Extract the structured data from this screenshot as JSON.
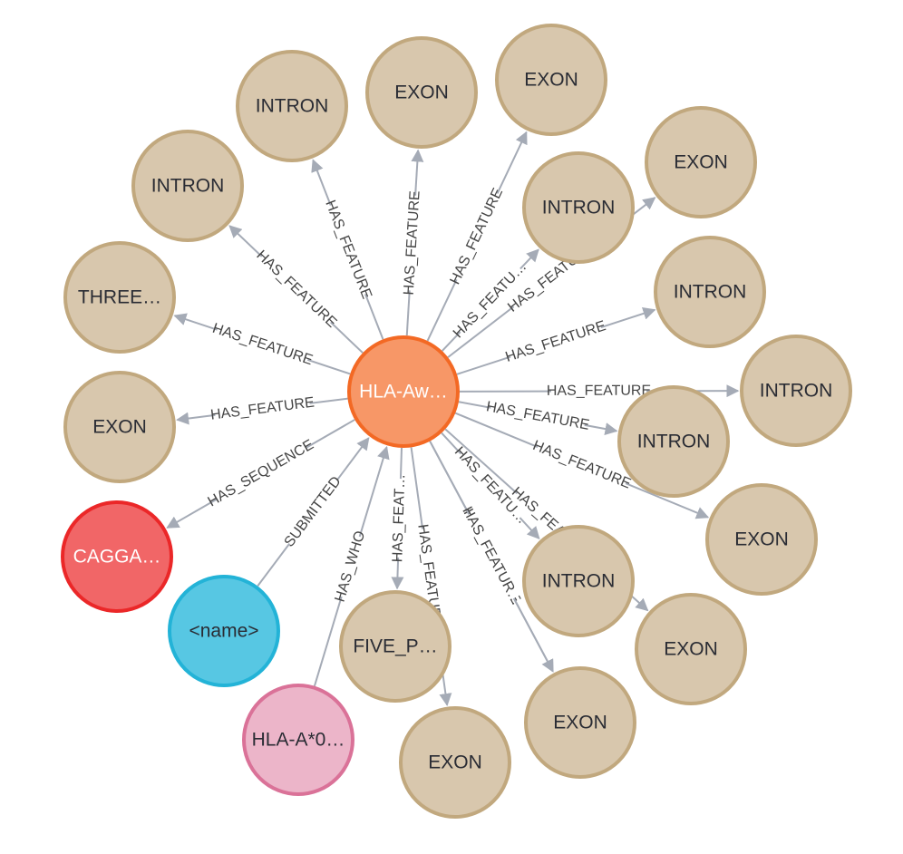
{
  "colors": {
    "feature_fill": "#d8c7ad",
    "feature_stroke": "#c1a87e",
    "center_fill": "#f79767",
    "center_stroke": "#f36924",
    "sequence_fill": "#f16667",
    "sequence_stroke": "#eb2728",
    "submitter_fill": "#57c7e3",
    "submitter_stroke": "#23b3d7",
    "who_fill": "#ecb5c9",
    "who_stroke": "#da7298",
    "edge": "#a5abb6",
    "dark_text": "#2a2c34",
    "light_text": "#ffffff"
  },
  "graph": {
    "center": {
      "label": "HLA-Aw…",
      "type": "center"
    },
    "nodes": [
      {
        "id": "n1",
        "label": "INTRON",
        "type": "feature"
      },
      {
        "id": "n2",
        "label": "EXON",
        "type": "feature"
      },
      {
        "id": "n3",
        "label": "EXON",
        "type": "feature"
      },
      {
        "id": "n4",
        "label": "INTRON",
        "type": "feature"
      },
      {
        "id": "n5",
        "label": "EXON",
        "type": "feature"
      },
      {
        "id": "n6",
        "label": "INTRON",
        "type": "feature"
      },
      {
        "id": "n7",
        "label": "THREE…",
        "type": "feature"
      },
      {
        "id": "n8",
        "label": "INTRON",
        "type": "feature"
      },
      {
        "id": "n9",
        "label": "INTRON",
        "type": "feature"
      },
      {
        "id": "n10",
        "label": "EXON",
        "type": "feature"
      },
      {
        "id": "n11",
        "label": "INTRON",
        "type": "feature"
      },
      {
        "id": "n12",
        "label": "EXON",
        "type": "feature"
      },
      {
        "id": "n13",
        "label": "CAGGA…",
        "type": "sequence"
      },
      {
        "id": "n14",
        "label": "INTRON",
        "type": "feature"
      },
      {
        "id": "n15",
        "label": "EXON",
        "type": "feature"
      },
      {
        "id": "n16",
        "label": "<name>",
        "type": "submitter"
      },
      {
        "id": "n17",
        "label": "FIVE_P…",
        "type": "feature"
      },
      {
        "id": "n18",
        "label": "EXON",
        "type": "feature"
      },
      {
        "id": "n19",
        "label": "EXON",
        "type": "feature"
      },
      {
        "id": "n20",
        "label": "HLA-A*0…",
        "type": "who"
      },
      {
        "id": "n21",
        "label": "EXON",
        "type": "feature"
      }
    ],
    "edges": [
      {
        "from": "center",
        "to": "n1",
        "label": "HAS_FEATURE"
      },
      {
        "from": "center",
        "to": "n2",
        "label": "HAS_FEATURE"
      },
      {
        "from": "center",
        "to": "n3",
        "label": "HAS_FEATURE"
      },
      {
        "from": "center",
        "to": "n4",
        "label": "HAS_FEATU…"
      },
      {
        "from": "center",
        "to": "n5",
        "label": "HAS_FEATURE"
      },
      {
        "from": "center",
        "to": "n6",
        "label": "HAS_FEATURE"
      },
      {
        "from": "center",
        "to": "n7",
        "label": "HAS_FEATURE"
      },
      {
        "from": "center",
        "to": "n8",
        "label": "HAS_FEATURE"
      },
      {
        "from": "center",
        "to": "n9",
        "label": "HAS_FEATURE"
      },
      {
        "from": "center",
        "to": "n10",
        "label": "HAS_FEATURE"
      },
      {
        "from": "center",
        "to": "n11",
        "label": "HAS_FEATURE"
      },
      {
        "from": "center",
        "to": "n12",
        "label": "HAS_FEATURE"
      },
      {
        "from": "center",
        "to": "n13",
        "label": "HAS_SEQUENCE"
      },
      {
        "from": "center",
        "to": "n14",
        "label": "HAS_FEATU…"
      },
      {
        "from": "center",
        "to": "n15",
        "label": "HAS_FEAT…"
      },
      {
        "from": "n16",
        "to": "center",
        "label": "SUBMITTED"
      },
      {
        "from": "center",
        "to": "n17",
        "label": "HAS_FEAT…"
      },
      {
        "from": "center",
        "to": "n18",
        "label": "HAS_FEATURE"
      },
      {
        "from": "center",
        "to": "n19",
        "label": "HAS_FEATURE"
      },
      {
        "from": "n20",
        "to": "center",
        "label": "HAS_WHO"
      },
      {
        "from": "center",
        "to": "n21",
        "label": "HAS_FEATUR…"
      }
    ]
  }
}
